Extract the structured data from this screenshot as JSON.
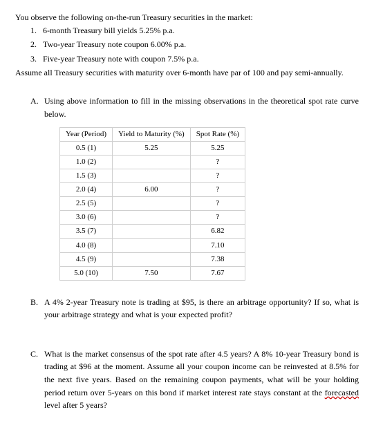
{
  "intro": "You observe the following on-the-run Treasury securities in the market:",
  "obs": {
    "n1": "1.",
    "t1": "6-month Treasury bill yields 5.25% p.a.",
    "n2": "2.",
    "t2": "Two-year Treasury note coupon 6.00% p.a.",
    "n3": "3.",
    "t3": "Five-year Treasury note with coupon 7.5% p.a."
  },
  "assume": "Assume all Treasury securities with maturity over 6-month have par of 100 and pay semi-annually.",
  "A": {
    "letter": "A.",
    "text": "Using above information to fill in the missing observations in the theoretical spot rate curve below.",
    "table": {
      "h1": "Year (Period)",
      "h2": "Yield to Maturity (%)",
      "h3": "Spot Rate (%)",
      "rows": [
        {
          "c1": "0.5 (1)",
          "c2": "5.25",
          "c3": "5.25"
        },
        {
          "c1": "1.0 (2)",
          "c2": "",
          "c3": "?"
        },
        {
          "c1": "1.5 (3)",
          "c2": "",
          "c3": "?"
        },
        {
          "c1": "2.0 (4)",
          "c2": "6.00",
          "c3": "?"
        },
        {
          "c1": "2.5 (5)",
          "c2": "",
          "c3": "?"
        },
        {
          "c1": "3.0 (6)",
          "c2": "",
          "c3": "?"
        },
        {
          "c1": "3.5 (7)",
          "c2": "",
          "c3": "6.82"
        },
        {
          "c1": "4.0 (8)",
          "c2": "",
          "c3": "7.10"
        },
        {
          "c1": "4.5 (9)",
          "c2": "",
          "c3": "7.38"
        },
        {
          "c1": "5.0 (10)",
          "c2": "7.50",
          "c3": "7.67"
        }
      ],
      "border_color": "#cfcfcf",
      "font_size_pt": 11
    }
  },
  "B": {
    "letter": "B.",
    "text": "A 4% 2-year Treasury note is trading at $95, is there an arbitrage opportunity? If so, what is your arbitrage strategy and what is your expected profit?"
  },
  "C": {
    "letter": "C.",
    "pre": "What is the market consensus of the spot rate after 4.5 years?  A 8% 10-year Treasury bond is trading at $96 at the moment. Assume all your coupon income can be reinvested at 8.5% for the next five years. Based on the remaining coupon payments, what will be your holding period return over 5-years on this bond if market interest rate stays constant at the ",
    "wavy": "forecasted",
    "post": " level after 5 years?"
  }
}
